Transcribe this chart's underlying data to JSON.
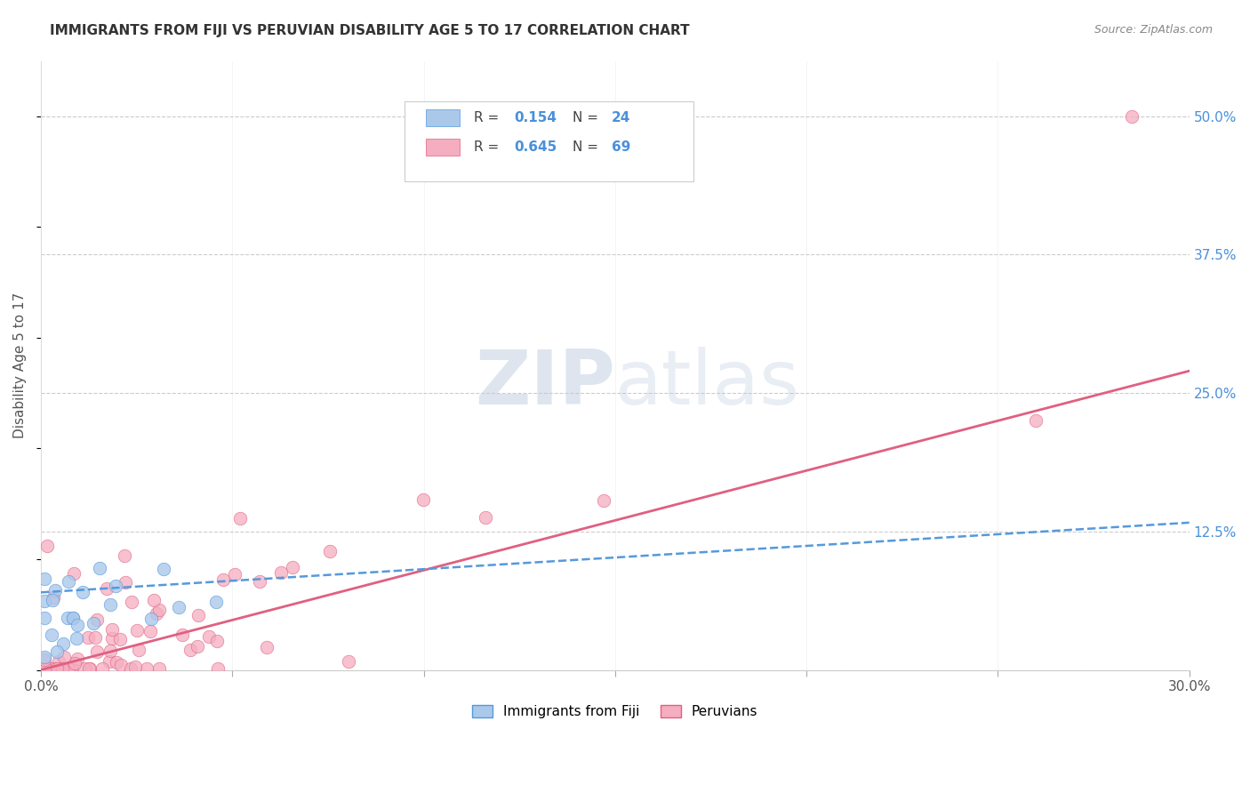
{
  "title": "IMMIGRANTS FROM FIJI VS PERUVIAN DISABILITY AGE 5 TO 17 CORRELATION CHART",
  "source": "Source: ZipAtlas.com",
  "ylabel": "Disability Age 5 to 17",
  "xlim": [
    0.0,
    0.3
  ],
  "ylim": [
    0.0,
    0.55
  ],
  "ytick_labels_right": [
    "50.0%",
    "37.5%",
    "25.0%",
    "12.5%",
    ""
  ],
  "ytick_vals_right": [
    0.5,
    0.375,
    0.25,
    0.125,
    0.0
  ],
  "grid_color": "#cccccc",
  "fiji_color": "#aac8ea",
  "peru_color": "#f5adc0",
  "fiji_line_color": "#5599dd",
  "peru_line_color": "#e06080",
  "fiji_R": 0.154,
  "fiji_N": 24,
  "peru_R": 0.645,
  "peru_N": 69,
  "legend_label_fiji": "Immigrants from Fiji",
  "legend_label_peru": "Peruvians",
  "legend_text_color": "#4a90d9",
  "peru_line_start_y": 0.0,
  "peru_line_end_y": 0.27,
  "fiji_line_start_y": 0.07,
  "fiji_line_end_y": 0.133
}
